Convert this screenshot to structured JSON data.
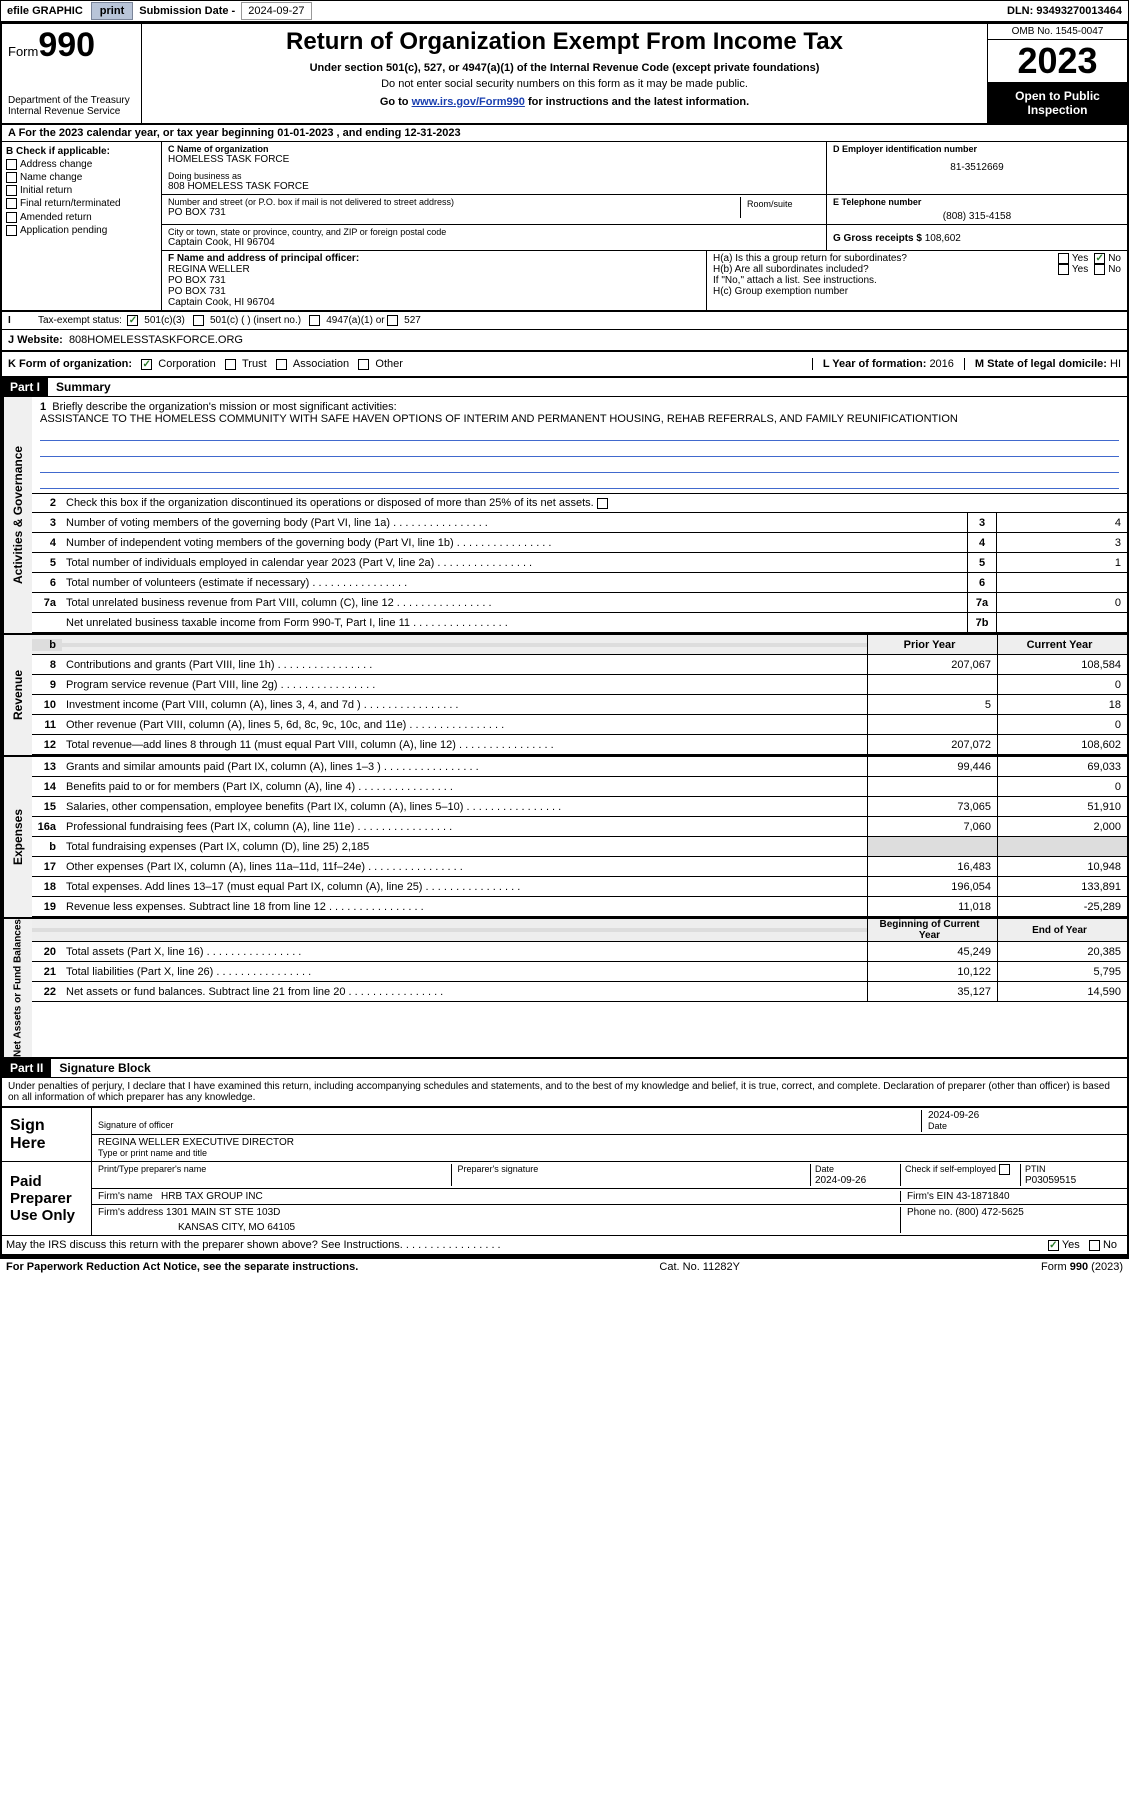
{
  "topbar": {
    "efile": "efile GRAPHIC",
    "print": "print",
    "sub_label": "Submission Date - ",
    "sub_date": "2024-09-27",
    "dln_label": "DLN: ",
    "dln": "93493270013464"
  },
  "header": {
    "form_prefix": "Form",
    "form_no": "990",
    "title": "Return of Organization Exempt From Income Tax",
    "subtitle": "Under section 501(c), 527, or 4947(a)(1) of the Internal Revenue Code (except private foundations)",
    "sub2": "Do not enter social security numbers on this form as it may be made public.",
    "link_pre": "Go to ",
    "link": "www.irs.gov/Form990",
    "link_post": " for instructions and the latest information.",
    "dept": "Department of the Treasury\nInternal Revenue Service",
    "omb": "OMB No. 1545-0047",
    "year": "2023",
    "open": "Open to Public Inspection"
  },
  "rowA": {
    "text_pre": "A For the 2023 calendar year, or tax year beginning ",
    "begin": "01-01-2023",
    "mid": "  , and ending ",
    "end": "12-31-2023"
  },
  "colB": {
    "hdr": "B Check if applicable:",
    "opts": [
      "Address change",
      "Name change",
      "Initial return",
      "Final return/terminated",
      "Amended return",
      "Application pending"
    ]
  },
  "colC": {
    "name_label": "C Name of organization",
    "name": "HOMELESS TASK FORCE",
    "dba_label": "Doing business as",
    "dba": "808 HOMELESS TASK FORCE",
    "addr_label": "Number and street (or P.O. box if mail is not delivered to street address)",
    "room_label": "Room/suite",
    "addr": "PO BOX 731",
    "city_label": "City or town, state or province, country, and ZIP or foreign postal code",
    "city": "Captain Cook, HI  96704"
  },
  "colD": {
    "ein_label": "D Employer identification number",
    "ein": "81-3512669",
    "phone_label": "E Telephone number",
    "phone": "(808) 315-4158",
    "gross_label": "G Gross receipts $ ",
    "gross": "108,602"
  },
  "rowF": {
    "label": "F  Name and address of principal officer:",
    "name": "REGINA WELLER",
    "l1": "PO BOX 731",
    "l2": "PO BOX 731",
    "l3": "Captain Cook, HI  96704"
  },
  "rowH": {
    "a_label": "H(a)  Is this a group return for subordinates?",
    "b_label": "H(b)  Are all subordinates included?",
    "b_note": "If \"No,\" attach a list. See instructions.",
    "c_label": "H(c)  Group exemption number ",
    "yes": "Yes",
    "no": "No"
  },
  "rowI": {
    "label": "Tax-exempt status:",
    "o1": "501(c)(3)",
    "o2": "501(c) (  ) (insert no.)",
    "o3": "4947(a)(1) or",
    "o4": "527"
  },
  "rowJ": {
    "label": "J  Website:  ",
    "val": "808HOMELESSTASKFORCE.ORG"
  },
  "rowK": {
    "label": "K Form of organization:",
    "corp": "Corporation",
    "trust": "Trust",
    "assoc": "Association",
    "other": "Other",
    "l_label": "L Year of formation: ",
    "l_val": "2016",
    "m_label": "M State of legal domicile: ",
    "m_val": "HI"
  },
  "part1": {
    "title_part": "Part I",
    "title": "Summary",
    "q1": "Briefly describe the organization's mission or most significant activities:",
    "mission": "ASSISTANCE TO THE HOMELESS COMMUNITY WITH SAFE HAVEN OPTIONS OF INTERIM AND PERMANENT HOUSING, REHAB REFERRALS, AND FAMILY REUNIFICATIONTION",
    "q2": "Check this box      if the organization discontinued its operations or disposed of more than 25% of its net assets.",
    "vert_act": "Activities & Governance",
    "vert_rev": "Revenue",
    "vert_exp": "Expenses",
    "vert_net": "Net Assets or Fund Balances",
    "prior": "Prior Year",
    "current": "Current Year",
    "begin": "Beginning of Current Year",
    "end": "End of Year",
    "lines_gov": [
      {
        "n": "3",
        "t": "Number of voting members of the governing body (Part VI, line 1a)",
        "box": "3",
        "v": "4"
      },
      {
        "n": "4",
        "t": "Number of independent voting members of the governing body (Part VI, line 1b)",
        "box": "4",
        "v": "3"
      },
      {
        "n": "5",
        "t": "Total number of individuals employed in calendar year 2023 (Part V, line 2a)",
        "box": "5",
        "v": "1"
      },
      {
        "n": "6",
        "t": "Total number of volunteers (estimate if necessary)",
        "box": "6",
        "v": ""
      },
      {
        "n": "7a",
        "t": "Total unrelated business revenue from Part VIII, column (C), line 12",
        "box": "7a",
        "v": "0"
      },
      {
        "n": "",
        "t": "Net unrelated business taxable income from Form 990-T, Part I, line 11",
        "box": "7b",
        "v": ""
      }
    ],
    "lines_rev": [
      {
        "n": "8",
        "t": "Contributions and grants (Part VIII, line 1h)",
        "p": "207,067",
        "c": "108,584"
      },
      {
        "n": "9",
        "t": "Program service revenue (Part VIII, line 2g)",
        "p": "",
        "c": "0"
      },
      {
        "n": "10",
        "t": "Investment income (Part VIII, column (A), lines 3, 4, and 7d )",
        "p": "5",
        "c": "18"
      },
      {
        "n": "11",
        "t": "Other revenue (Part VIII, column (A), lines 5, 6d, 8c, 9c, 10c, and 11e)",
        "p": "",
        "c": "0"
      },
      {
        "n": "12",
        "t": "Total revenue—add lines 8 through 11 (must equal Part VIII, column (A), line 12)",
        "p": "207,072",
        "c": "108,602"
      }
    ],
    "lines_exp": [
      {
        "n": "13",
        "t": "Grants and similar amounts paid (Part IX, column (A), lines 1–3 )",
        "p": "99,446",
        "c": "69,033"
      },
      {
        "n": "14",
        "t": "Benefits paid to or for members (Part IX, column (A), line 4)",
        "p": "",
        "c": "0"
      },
      {
        "n": "15",
        "t": "Salaries, other compensation, employee benefits (Part IX, column (A), lines 5–10)",
        "p": "73,065",
        "c": "51,910"
      },
      {
        "n": "16a",
        "t": "Professional fundraising fees (Part IX, column (A), line 11e)",
        "p": "7,060",
        "c": "2,000"
      },
      {
        "n": "b",
        "t": "Total fundraising expenses (Part IX, column (D), line 25) 2,185",
        "p": "",
        "c": "",
        "shade": true
      },
      {
        "n": "17",
        "t": "Other expenses (Part IX, column (A), lines 11a–11d, 11f–24e)",
        "p": "16,483",
        "c": "10,948"
      },
      {
        "n": "18",
        "t": "Total expenses. Add lines 13–17 (must equal Part IX, column (A), line 25)",
        "p": "196,054",
        "c": "133,891"
      },
      {
        "n": "19",
        "t": "Revenue less expenses. Subtract line 18 from line 12",
        "p": "11,018",
        "c": "-25,289"
      }
    ],
    "lines_net": [
      {
        "n": "20",
        "t": "Total assets (Part X, line 16)",
        "p": "45,249",
        "c": "20,385"
      },
      {
        "n": "21",
        "t": "Total liabilities (Part X, line 26)",
        "p": "10,122",
        "c": "5,795"
      },
      {
        "n": "22",
        "t": "Net assets or fund balances. Subtract line 21 from line 20",
        "p": "35,127",
        "c": "14,590"
      }
    ]
  },
  "part2": {
    "title_part": "Part II",
    "title": "Signature Block",
    "decl": "Under penalties of perjury, I declare that I have examined this return, including accompanying schedules and statements, and to the best of my knowledge and belief, it is true, correct, and complete. Declaration of preparer (other than officer) is based on all information of which preparer has any knowledge.",
    "sign_here": "Sign Here",
    "sig_officer": "Signature of officer",
    "date_label": "Date",
    "date1": "2024-09-26",
    "officer": "REGINA WELLER  EXECUTIVE DIRECTOR",
    "type_name": "Type or print name and title",
    "paid": "Paid Preparer Use Only",
    "prep_name_label": "Print/Type preparer's name",
    "prep_sig_label": "Preparer's signature",
    "date2": "2024-09-26",
    "check_self": "Check        if self-employed",
    "ptin_label": "PTIN",
    "ptin": "P03059515",
    "firm_name_label": "Firm's name   ",
    "firm_name": "HRB TAX GROUP INC",
    "firm_ein_label": "Firm's EIN  ",
    "firm_ein": "43-1871840",
    "firm_addr_label": "Firm's address ",
    "firm_addr1": "1301 MAIN ST STE 103D",
    "firm_addr2": "KANSAS CITY, MO  64105",
    "phone_label": "Phone no. ",
    "phone": "(800) 472-5625",
    "discuss": "May the IRS discuss this return with the preparer shown above? See Instructions.",
    "yes": "Yes",
    "no": "No"
  },
  "footer": {
    "left": "For Paperwork Reduction Act Notice, see the separate instructions.",
    "mid": "Cat. No. 11282Y",
    "right": "Form 990 (2023)"
  }
}
